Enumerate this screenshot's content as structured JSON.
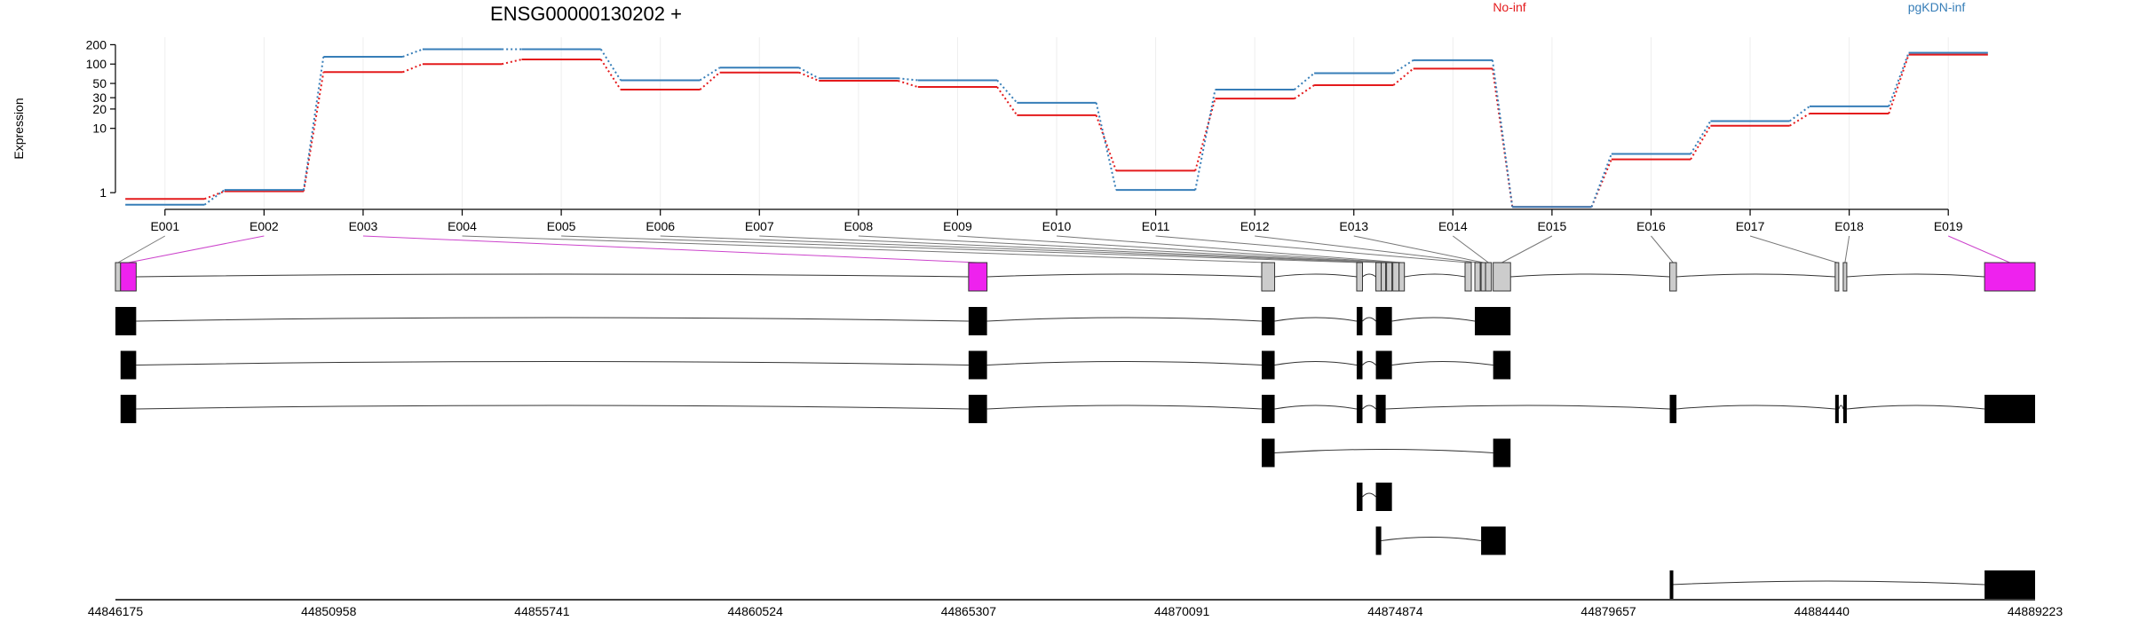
{
  "chart_data": {
    "type": "line",
    "title": "ENSG00000130202 +",
    "ylabel": "Expression",
    "yscale": "log",
    "ylim": [
      0.55,
      230
    ],
    "yticks": [
      1,
      10,
      20,
      30,
      50,
      100,
      200
    ],
    "ytick_labels": [
      "1",
      "10",
      "20",
      "30",
      "50",
      "100",
      "200"
    ],
    "exons": [
      "E001",
      "E002",
      "E003",
      "E004",
      "E005",
      "E006",
      "E007",
      "E008",
      "E009",
      "E010",
      "E011",
      "E012",
      "E013",
      "E014",
      "E015",
      "E016",
      "E017",
      "E018",
      "E019"
    ],
    "series": [
      {
        "name": "No-inf",
        "color": "#e41a1c",
        "values": [
          0.8,
          1.05,
          75,
          100,
          118,
          40,
          74,
          55,
          44,
          16,
          2.2,
          29,
          47,
          85,
          0.6,
          3.3,
          11,
          17,
          140
        ]
      },
      {
        "name": "pgKDN-inf",
        "color": "#377eb8",
        "values": [
          0.65,
          1.1,
          130,
          170,
          170,
          56,
          88,
          60,
          56,
          25,
          1.1,
          40,
          72,
          115,
          0.6,
          4,
          13,
          22,
          150
        ]
      }
    ],
    "genomic_axis": {
      "range": [
        44846175,
        44889223
      ],
      "ticks": [
        44846175,
        44850958,
        44855741,
        44860524,
        44865307,
        44870091,
        44874874,
        44879657,
        44884440,
        44889223
      ],
      "tick_labels": [
        "44846175",
        "44850958",
        "44855741",
        "44860524",
        "44865307",
        "44870091",
        "44874874",
        "44879657",
        "44884440",
        "44889223"
      ]
    },
    "gene_model": {
      "exons": [
        {
          "id": "E001",
          "start": 44846175,
          "end": 44846290,
          "highlight": false
        },
        {
          "id": "E002",
          "start": 44846290,
          "end": 44846640,
          "highlight": true
        },
        {
          "id": "E003",
          "start": 44865307,
          "end": 44865720,
          "highlight": true
        },
        {
          "id": "E004",
          "start": 44871880,
          "end": 44872170,
          "highlight": false
        },
        {
          "id": "E005",
          "start": 44874010,
          "end": 44874140,
          "highlight": false
        },
        {
          "id": "E006",
          "start": 44874440,
          "end": 44874560,
          "highlight": false
        },
        {
          "id": "E007",
          "start": 44874560,
          "end": 44874660,
          "highlight": false
        },
        {
          "id": "E008",
          "start": 44874680,
          "end": 44874800,
          "highlight": false
        },
        {
          "id": "E009",
          "start": 44874820,
          "end": 44874960,
          "highlight": false
        },
        {
          "id": "E010",
          "start": 44874960,
          "end": 44875080,
          "highlight": false
        },
        {
          "id": "E011",
          "start": 44876440,
          "end": 44876580,
          "highlight": false
        },
        {
          "id": "E012",
          "start": 44876660,
          "end": 44876780,
          "highlight": false
        },
        {
          "id": "E013",
          "start": 44876800,
          "end": 44876900,
          "highlight": false
        },
        {
          "id": "E014",
          "start": 44876900,
          "end": 44877030,
          "highlight": false
        },
        {
          "id": "E015",
          "start": 44877070,
          "end": 44877460,
          "highlight": false
        },
        {
          "id": "E016",
          "start": 44881030,
          "end": 44881180,
          "highlight": false
        },
        {
          "id": "E017",
          "start": 44884740,
          "end": 44884820,
          "highlight": false
        },
        {
          "id": "E018",
          "start": 44884920,
          "end": 44885000,
          "highlight": false
        },
        {
          "id": "E019",
          "start": 44888090,
          "end": 44889223,
          "highlight": true
        }
      ],
      "transcripts": [
        [
          [
            44846175,
            44846640
          ],
          [
            44865307,
            44865720
          ],
          [
            44871880,
            44872170
          ],
          [
            44874010,
            44874140
          ],
          [
            44874440,
            44874800
          ],
          [
            44876660,
            44877460
          ]
        ],
        [
          [
            44846290,
            44846640
          ],
          [
            44865307,
            44865720
          ],
          [
            44871880,
            44872170
          ],
          [
            44874010,
            44874140
          ],
          [
            44874440,
            44874800
          ],
          [
            44877070,
            44877460
          ]
        ],
        [
          [
            44846290,
            44846640
          ],
          [
            44865307,
            44865720
          ],
          [
            44871880,
            44872170
          ],
          [
            44874010,
            44874140
          ],
          [
            44874440,
            44874660
          ],
          [
            44881030,
            44881180
          ],
          [
            44884740,
            44884820
          ],
          [
            44884920,
            44885000
          ],
          [
            44888090,
            44889223
          ]
        ],
        [
          [
            44871880,
            44872170
          ],
          [
            44877070,
            44877460
          ]
        ],
        [
          [
            44874010,
            44874140
          ],
          [
            44874440,
            44874800
          ]
        ],
        [
          [
            44874440,
            44874560
          ],
          [
            44876800,
            44877350
          ]
        ],
        [
          [
            44881030,
            44881060
          ],
          [
            44888090,
            44889223
          ]
        ]
      ]
    }
  }
}
